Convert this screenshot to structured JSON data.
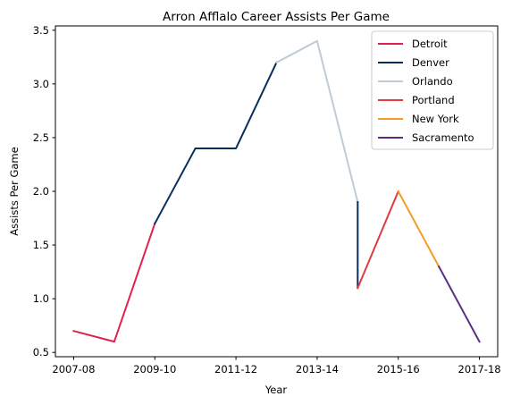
{
  "chart_data": {
    "type": "line",
    "title": "Arron Afflalo Career Assists Per Game",
    "xlabel": "Year",
    "ylabel": "Assists Per Game",
    "x_tick_labels": [
      "2007-08",
      "2009-10",
      "2011-12",
      "2013-14",
      "2015-16",
      "2017-18"
    ],
    "y_ticks": [
      0.5,
      1.0,
      1.5,
      2.0,
      2.5,
      3.0,
      3.5
    ],
    "y_tick_labels": [
      "0.5",
      "1.0",
      "1.5",
      "2.0",
      "2.5",
      "3.0",
      "3.5"
    ],
    "ylim": [
      0.46,
      3.54
    ],
    "legend_position": "top-right",
    "series": [
      {
        "name": "Detroit",
        "color": "#e0204f",
        "points": [
          [
            2007,
            0.7
          ],
          [
            2008,
            0.6
          ],
          [
            2009,
            1.7
          ]
        ]
      },
      {
        "name": "Denver",
        "color": "#0a2d5c",
        "points": [
          [
            2009,
            1.7
          ],
          [
            2010,
            2.4
          ],
          [
            2011,
            2.4
          ],
          [
            2012,
            3.2
          ]
        ]
      },
      {
        "name": "Orlando",
        "color": "#c0cbd3",
        "points": [
          [
            2012,
            3.2
          ],
          [
            2013,
            3.4
          ],
          [
            2014,
            1.9
          ]
        ]
      },
      {
        "name": "Denver",
        "color": "#0a2d5c",
        "points": [
          [
            2014,
            1.9
          ],
          [
            2014,
            1.1
          ]
        ]
      },
      {
        "name": "Portland",
        "color": "#e03a3e",
        "points": [
          [
            2014,
            1.1
          ],
          [
            2015,
            2.0
          ]
        ]
      },
      {
        "name": "New York",
        "color": "#f59c26",
        "points": [
          [
            2015,
            2.0
          ],
          [
            2016,
            1.3
          ]
        ]
      },
      {
        "name": "Sacramento",
        "color": "#5a2d81",
        "points": [
          [
            2016,
            1.3
          ],
          [
            2017,
            0.6
          ]
        ]
      }
    ],
    "legend_items": [
      {
        "name": "Detroit",
        "color": "#e0204f"
      },
      {
        "name": "Denver",
        "color": "#0a2d5c"
      },
      {
        "name": "Orlando",
        "color": "#c0cbd3"
      },
      {
        "name": "Portland",
        "color": "#e03a3e"
      },
      {
        "name": "New York",
        "color": "#f59c26"
      },
      {
        "name": "Sacramento",
        "color": "#5a2d81"
      }
    ]
  }
}
